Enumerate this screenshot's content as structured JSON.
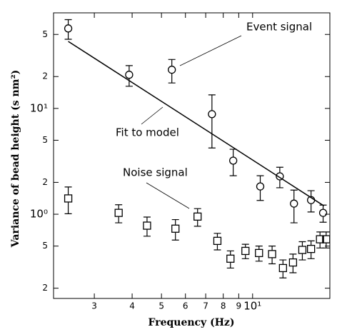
{
  "chart_data": {
    "type": "scatter",
    "xlabel": "Frequency (Hz)",
    "ylabel": "Variance of bead height (s nm²)",
    "xscale": "log",
    "yscale": "log",
    "xlim": [
      2.2,
      18
    ],
    "ylim": [
      0.16,
      80
    ],
    "xticks": [
      3,
      4,
      5,
      6,
      7,
      8,
      9,
      {
        "value": 10,
        "label": "10¹"
      }
    ],
    "yticks": [
      {
        "value": 0.2,
        "label": "2"
      },
      {
        "value": 0.5,
        "label": "5"
      },
      {
        "value": 1,
        "label": "10⁰"
      },
      2,
      5,
      {
        "value": 10,
        "label": "10¹"
      },
      {
        "value": 20,
        "label": "2"
      },
      {
        "value": 50,
        "label": "5"
      }
    ],
    "series": [
      {
        "name": "Event signal",
        "marker": "circle",
        "color": "#000000",
        "x": [
          2.46,
          3.91,
          5.41,
          7.34,
          8.63,
          10.6,
          12.3,
          13.7,
          15.6,
          17.1
        ],
        "values": [
          57,
          20.8,
          23.2,
          8.83,
          3.21,
          1.83,
          2.28,
          1.26,
          1.36,
          1.03
        ],
        "yerr": [
          12,
          4.6,
          5.8,
          4.6,
          0.9,
          0.48,
          0.5,
          0.43,
          0.31,
          0.19
        ]
      },
      {
        "name": "Noise signal",
        "marker": "square",
        "color": "#000000",
        "x": [
          2.46,
          3.61,
          4.48,
          5.56,
          6.58,
          7.65,
          8.45,
          9.47,
          10.5,
          11.6,
          12.6,
          13.6,
          14.6,
          15.6,
          16.7,
          17.5
        ],
        "values": [
          1.41,
          1.03,
          0.78,
          0.73,
          0.95,
          0.56,
          0.38,
          0.45,
          0.43,
          0.42,
          0.31,
          0.35,
          0.46,
          0.47,
          0.58,
          0.58
        ],
        "yerr": [
          0.4,
          0.2,
          0.16,
          0.16,
          0.18,
          0.1,
          0.07,
          0.07,
          0.07,
          0.08,
          0.06,
          0.07,
          0.09,
          0.09,
          0.1,
          0.1
        ]
      },
      {
        "name": "Fit to model",
        "marker": "line",
        "color": "#000000",
        "x": [
          2.46,
          17.2
        ],
        "values": [
          43,
          1.2
        ]
      }
    ]
  }
}
